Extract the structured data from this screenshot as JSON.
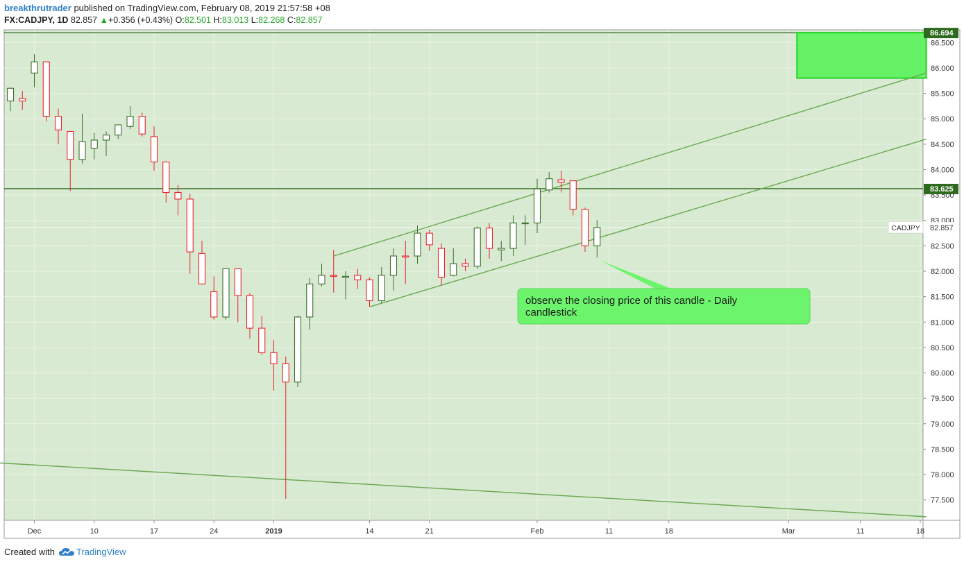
{
  "header": {
    "author": "breakthrutrader",
    "published_text": "published on TradingView.com, February 08, 2019 21:57:58 +08",
    "symbol_line": "FX:CADJPY, 1D",
    "last": "82.857",
    "up_arrow": "▲",
    "change": "+0.356 (+0.43%)",
    "o_label": "O:",
    "o_value": "82.501",
    "h_label": "H:",
    "h_value": "83.013",
    "l_label": "L:",
    "l_value": "82.268",
    "c_label": "C:",
    "c_value": "82.857"
  },
  "footer": {
    "created_with": "Created with",
    "brand": "TradingView",
    "logo_icon": "tradingview-cloud-icon"
  },
  "colors": {
    "plot_bg": "#d9ead3",
    "bull_fill": "#ffffff",
    "bull_stroke": "#3c6e2a",
    "bear_stroke": "#e8232b",
    "trend": "#6aa84f",
    "hline": "#2d6a1e",
    "zone": "#66f266",
    "callout": "#6cf56c"
  },
  "chart_data": {
    "type": "candlestick",
    "symbol": "CADJPY",
    "interval": "1D",
    "ylim": [
      77.1,
      86.75
    ],
    "y_ticks": [
      77.5,
      78.0,
      78.5,
      79.0,
      79.5,
      80.0,
      80.5,
      81.0,
      81.5,
      82.0,
      82.5,
      83.0,
      83.5,
      84.0,
      84.5,
      85.0,
      85.5,
      86.0,
      86.5
    ],
    "y_tick_labels": [
      "77.500",
      "78.000",
      "78.500",
      "79.000",
      "79.500",
      "80.000",
      "80.500",
      "81.000",
      "81.500",
      "82.000",
      "82.500",
      "83.000",
      "83.500",
      "84.000",
      "84.500",
      "85.000",
      "85.500",
      "86.000",
      "86.500"
    ],
    "x_tick_labels": [
      {
        "label": "Dec",
        "i": 2
      },
      {
        "label": "10",
        "i": 7
      },
      {
        "label": "17",
        "i": 12
      },
      {
        "label": "24",
        "i": 17
      },
      {
        "label": "2019",
        "i": 22,
        "bold": true
      },
      {
        "label": "14",
        "i": 30
      },
      {
        "label": "21",
        "i": 35
      },
      {
        "label": "Feb",
        "i": 44
      },
      {
        "label": "11",
        "i": 50
      },
      {
        "label": "18",
        "i": 55
      },
      {
        "label": "Mar",
        "i": 65
      },
      {
        "label": "11",
        "i": 71
      },
      {
        "label": "18",
        "i": 76
      }
    ],
    "candles": [
      {
        "o": 85.35,
        "h": 85.62,
        "l": 85.15,
        "c": 85.6
      },
      {
        "o": 85.4,
        "h": 85.55,
        "l": 85.18,
        "c": 85.35
      },
      {
        "o": 85.9,
        "h": 86.27,
        "l": 85.62,
        "c": 86.12
      },
      {
        "o": 86.12,
        "h": 86.12,
        "l": 84.95,
        "c": 85.05
      },
      {
        "o": 85.05,
        "h": 85.2,
        "l": 84.5,
        "c": 84.78
      },
      {
        "o": 84.75,
        "h": 84.75,
        "l": 83.58,
        "c": 84.2
      },
      {
        "o": 84.2,
        "h": 85.1,
        "l": 84.12,
        "c": 84.55
      },
      {
        "o": 84.42,
        "h": 84.72,
        "l": 84.2,
        "c": 84.58
      },
      {
        "o": 84.58,
        "h": 84.75,
        "l": 84.27,
        "c": 84.68
      },
      {
        "o": 84.68,
        "h": 84.88,
        "l": 84.6,
        "c": 84.88
      },
      {
        "o": 84.85,
        "h": 85.25,
        "l": 84.8,
        "c": 85.05
      },
      {
        "o": 85.05,
        "h": 85.12,
        "l": 84.65,
        "c": 84.7
      },
      {
        "o": 84.65,
        "h": 84.85,
        "l": 83.98,
        "c": 84.15
      },
      {
        "o": 84.15,
        "h": 84.15,
        "l": 83.35,
        "c": 83.55
      },
      {
        "o": 83.55,
        "h": 83.7,
        "l": 83.1,
        "c": 83.42
      },
      {
        "o": 83.42,
        "h": 83.52,
        "l": 81.95,
        "c": 82.38
      },
      {
        "o": 82.35,
        "h": 82.6,
        "l": 81.75,
        "c": 81.75
      },
      {
        "o": 81.6,
        "h": 81.9,
        "l": 81.05,
        "c": 81.1
      },
      {
        "o": 81.1,
        "h": 82.05,
        "l": 81.05,
        "c": 82.05
      },
      {
        "o": 82.05,
        "h": 82.05,
        "l": 81.0,
        "c": 81.52
      },
      {
        "o": 81.52,
        "h": 81.57,
        "l": 80.68,
        "c": 80.88
      },
      {
        "o": 80.88,
        "h": 81.12,
        "l": 80.35,
        "c": 80.4
      },
      {
        "o": 80.4,
        "h": 80.65,
        "l": 79.65,
        "c": 80.18
      },
      {
        "o": 80.18,
        "h": 80.32,
        "l": 77.52,
        "c": 79.82
      },
      {
        "o": 79.82,
        "h": 81.12,
        "l": 79.72,
        "c": 81.1
      },
      {
        "o": 81.1,
        "h": 81.87,
        "l": 80.85,
        "c": 81.75
      },
      {
        "o": 81.75,
        "h": 82.15,
        "l": 81.7,
        "c": 81.92
      },
      {
        "o": 81.92,
        "h": 82.42,
        "l": 81.58,
        "c": 81.9
      },
      {
        "o": 81.88,
        "h": 82.0,
        "l": 81.45,
        "c": 81.9
      },
      {
        "o": 81.92,
        "h": 82.05,
        "l": 81.65,
        "c": 81.83
      },
      {
        "o": 81.83,
        "h": 81.88,
        "l": 81.3,
        "c": 81.42
      },
      {
        "o": 81.42,
        "h": 82.08,
        "l": 81.38,
        "c": 81.92
      },
      {
        "o": 81.92,
        "h": 82.45,
        "l": 81.62,
        "c": 82.3
      },
      {
        "o": 82.3,
        "h": 82.6,
        "l": 81.75,
        "c": 82.28
      },
      {
        "o": 82.3,
        "h": 82.9,
        "l": 82.15,
        "c": 82.75
      },
      {
        "o": 82.75,
        "h": 82.82,
        "l": 82.4,
        "c": 82.52
      },
      {
        "o": 82.45,
        "h": 82.55,
        "l": 81.72,
        "c": 81.88
      },
      {
        "o": 81.92,
        "h": 82.45,
        "l": 81.9,
        "c": 82.15
      },
      {
        "o": 82.15,
        "h": 82.25,
        "l": 82.0,
        "c": 82.1
      },
      {
        "o": 82.1,
        "h": 82.88,
        "l": 82.05,
        "c": 82.85
      },
      {
        "o": 82.85,
        "h": 82.95,
        "l": 82.25,
        "c": 82.45
      },
      {
        "o": 82.42,
        "h": 82.6,
        "l": 82.2,
        "c": 82.45
      },
      {
        "o": 82.45,
        "h": 83.1,
        "l": 82.3,
        "c": 82.95
      },
      {
        "o": 82.95,
        "h": 83.1,
        "l": 82.52,
        "c": 82.95
      },
      {
        "o": 82.95,
        "h": 83.82,
        "l": 82.75,
        "c": 83.62
      },
      {
        "o": 83.6,
        "h": 83.95,
        "l": 83.55,
        "c": 83.82
      },
      {
        "o": 83.8,
        "h": 83.98,
        "l": 83.55,
        "c": 83.75
      },
      {
        "o": 83.78,
        "h": 83.78,
        "l": 83.1,
        "c": 83.22
      },
      {
        "o": 83.22,
        "h": 83.25,
        "l": 82.38,
        "c": 82.5
      },
      {
        "o": 82.5,
        "h": 83.01,
        "l": 82.27,
        "c": 82.86
      }
    ],
    "first_candle_index": 0,
    "horizontal_lines": [
      {
        "price": 86.694,
        "label": "86.694"
      },
      {
        "price": 83.625,
        "label": "83.625"
      }
    ],
    "trend_lines": [
      {
        "from": {
          "i": 27,
          "p": 82.3
        },
        "to": {
          "i": 76.5,
          "p": 85.9
        }
      },
      {
        "from": {
          "i": 30,
          "p": 81.3
        },
        "to": {
          "i": 76.5,
          "p": 84.6
        }
      },
      {
        "from": {
          "i": -2.5,
          "p": 78.25
        },
        "to": {
          "i": 76.5,
          "p": 77.17
        }
      }
    ],
    "zone": {
      "from_i": 65.7,
      "to_i": 76.5,
      "top": 86.694,
      "bottom": 85.8
    },
    "last_price": {
      "symbol": "CADJPY",
      "value": 82.857,
      "label": "82.857"
    },
    "annotation": {
      "text_line1": "observe the closing price of this candle - Daily",
      "text_line2": "candlestick",
      "pointer_candle": 49
    }
  }
}
